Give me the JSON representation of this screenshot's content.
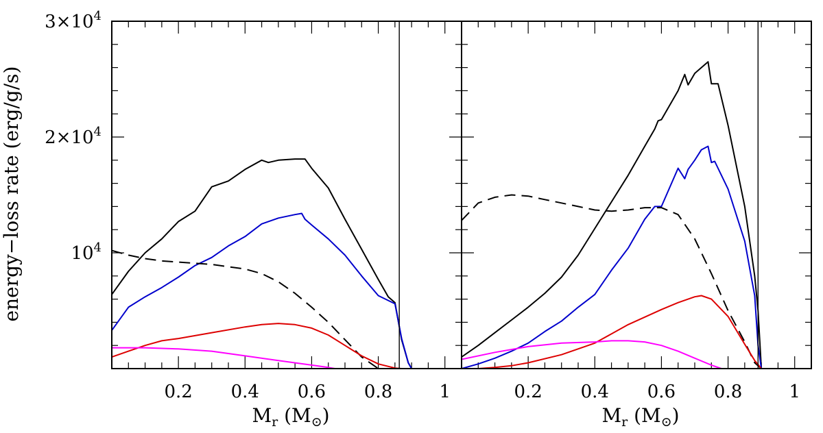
{
  "chart_data": {
    "type": "line",
    "ylabel": "energy−loss rate (erg/g/s)",
    "ylim": [
      0,
      30000
    ],
    "y_tick_labels": [
      {
        "value": 10000,
        "mantissa": "",
        "base": "10",
        "exp": "4"
      },
      {
        "value": 20000,
        "mantissa": "2×",
        "base": "10",
        "exp": "4"
      },
      {
        "value": 30000,
        "mantissa": "3×",
        "base": "10",
        "exp": "4"
      }
    ],
    "y_minor_step": 2000,
    "panels": [
      {
        "xlabel": {
          "main": "M",
          "sub": "r",
          "unit_open": " (M",
          "unit_sub": "⊙",
          "unit_close": ")"
        },
        "xlim": [
          0,
          1.05
        ],
        "xticks": [
          "0.2",
          "0.4",
          "0.6",
          "0.8",
          "1"
        ],
        "xtick_values": [
          0.2,
          0.4,
          0.6,
          0.8,
          1.0
        ],
        "x_minor_step": 0.05,
        "vline": 0.863,
        "series": [
          {
            "name": "total",
            "color": "#000000",
            "dash": "",
            "x": [
              0.0,
              0.05,
              0.1,
              0.15,
              0.2,
              0.25,
              0.3,
              0.35,
              0.4,
              0.45,
              0.47,
              0.5,
              0.55,
              0.58,
              0.6,
              0.65,
              0.7,
              0.75,
              0.8,
              0.83,
              0.85,
              0.87,
              0.89,
              0.9
            ],
            "y": [
              6400,
              8400,
              10000,
              11200,
              12700,
              13600,
              15700,
              16200,
              17200,
              18000,
              17800,
              18000,
              18100,
              18100,
              17300,
              15600,
              12900,
              10300,
              7700,
              6200,
              5700,
              2500,
              500,
              0
            ]
          },
          {
            "name": "blue",
            "color": "#0000cc",
            "dash": "",
            "x": [
              0.0,
              0.05,
              0.1,
              0.15,
              0.2,
              0.25,
              0.3,
              0.35,
              0.4,
              0.45,
              0.5,
              0.55,
              0.57,
              0.58,
              0.6,
              0.65,
              0.7,
              0.75,
              0.8,
              0.85,
              0.87,
              0.89,
              0.9
            ],
            "y": [
              3300,
              5300,
              6200,
              7000,
              7900,
              8900,
              9600,
              10600,
              11400,
              12500,
              13000,
              13300,
              13400,
              12900,
              12400,
              11200,
              9800,
              8000,
              6300,
              5600,
              2600,
              500,
              0
            ]
          },
          {
            "name": "dashed",
            "color": "#000000",
            "dash": "16 9",
            "x": [
              0.0,
              0.05,
              0.1,
              0.15,
              0.2,
              0.25,
              0.3,
              0.35,
              0.4,
              0.45,
              0.5,
              0.55,
              0.6,
              0.65,
              0.7,
              0.75,
              0.8
            ],
            "y": [
              10200,
              9800,
              9500,
              9300,
              9200,
              9100,
              9000,
              8800,
              8600,
              8200,
              7500,
              6500,
              5300,
              4000,
              2500,
              1000,
              0
            ]
          },
          {
            "name": "red",
            "color": "#dd0000",
            "dash": "",
            "x": [
              0.0,
              0.05,
              0.1,
              0.15,
              0.2,
              0.3,
              0.4,
              0.45,
              0.5,
              0.55,
              0.6,
              0.65,
              0.7,
              0.75,
              0.8,
              0.85,
              0.87
            ],
            "y": [
              1000,
              1500,
              2000,
              2400,
              2600,
              3100,
              3600,
              3800,
              3900,
              3800,
              3500,
              2900,
              2000,
              1100,
              400,
              50,
              0
            ]
          },
          {
            "name": "magenta",
            "color": "#ff00ff",
            "dash": "",
            "x": [
              0.0,
              0.1,
              0.2,
              0.3,
              0.4,
              0.5,
              0.6,
              0.65,
              0.67
            ],
            "y": [
              1800,
              1800,
              1700,
              1500,
              1100,
              700,
              300,
              100,
              0
            ]
          }
        ]
      },
      {
        "xlabel": {
          "main": "M",
          "sub": "r",
          "unit_open": " (M",
          "unit_sub": "⊙",
          "unit_close": ")"
        },
        "xlim": [
          0,
          1.05
        ],
        "xticks": [
          "0.2",
          "0.4",
          "0.6",
          "0.8",
          "1"
        ],
        "xtick_values": [
          0.2,
          0.4,
          0.6,
          0.8,
          1.0
        ],
        "x_minor_step": 0.05,
        "vline": 0.89,
        "series": [
          {
            "name": "total",
            "color": "#000000",
            "dash": "",
            "x": [
              0.0,
              0.05,
              0.1,
              0.15,
              0.2,
              0.25,
              0.3,
              0.35,
              0.4,
              0.45,
              0.5,
              0.55,
              0.58,
              0.59,
              0.6,
              0.65,
              0.67,
              0.68,
              0.7,
              0.72,
              0.74,
              0.75,
              0.77,
              0.8,
              0.85,
              0.88,
              0.89,
              0.9
            ],
            "y": [
              1000,
              2000,
              3100,
              4200,
              5300,
              6500,
              7900,
              9800,
              12100,
              14400,
              16700,
              19200,
              20700,
              21400,
              21500,
              24000,
              25400,
              24500,
              25500,
              26000,
              26500,
              24600,
              24600,
              21000,
              14000,
              8000,
              5000,
              0
            ]
          },
          {
            "name": "blue",
            "color": "#0000cc",
            "dash": "",
            "x": [
              0.0,
              0.05,
              0.1,
              0.15,
              0.2,
              0.25,
              0.3,
              0.35,
              0.4,
              0.45,
              0.5,
              0.55,
              0.58,
              0.6,
              0.65,
              0.67,
              0.68,
              0.7,
              0.72,
              0.74,
              0.75,
              0.76,
              0.8,
              0.85,
              0.88,
              0.89,
              0.9
            ],
            "y": [
              0,
              400,
              900,
              1500,
              2200,
              3200,
              4100,
              5300,
              6400,
              8500,
              10400,
              12900,
              14000,
              14000,
              17300,
              16400,
              17200,
              18000,
              18900,
              19200,
              17800,
              17900,
              15500,
              11000,
              6300,
              2000,
              0
            ]
          },
          {
            "name": "dashed",
            "color": "#000000",
            "dash": "16 9",
            "x": [
              0.0,
              0.05,
              0.1,
              0.15,
              0.2,
              0.25,
              0.3,
              0.35,
              0.4,
              0.45,
              0.5,
              0.55,
              0.6,
              0.65,
              0.7,
              0.75,
              0.8,
              0.85,
              0.88,
              0.9
            ],
            "y": [
              12800,
              14300,
              14800,
              15000,
              14900,
              14600,
              14300,
              14000,
              13700,
              13600,
              13700,
              13900,
              13900,
              13300,
              11200,
              8200,
              5000,
              2300,
              500,
              0
            ]
          },
          {
            "name": "red",
            "color": "#dd0000",
            "dash": "",
            "x": [
              0.0,
              0.05,
              0.1,
              0.15,
              0.2,
              0.3,
              0.4,
              0.5,
              0.6,
              0.65,
              0.7,
              0.72,
              0.75,
              0.8,
              0.85,
              0.88,
              0.9
            ],
            "y": [
              0,
              0,
              100,
              250,
              500,
              1200,
              2200,
              3800,
              5100,
              5700,
              6200,
              6300,
              6000,
              4500,
              2100,
              700,
              0
            ]
          },
          {
            "name": "magenta",
            "color": "#ff00ff",
            "dash": "",
            "x": [
              0.0,
              0.1,
              0.2,
              0.3,
              0.4,
              0.45,
              0.5,
              0.55,
              0.6,
              0.65,
              0.7,
              0.75,
              0.78
            ],
            "y": [
              800,
              1400,
              1900,
              2200,
              2300,
              2400,
              2400,
              2300,
              2000,
              1500,
              900,
              300,
              0
            ]
          }
        ]
      }
    ]
  }
}
